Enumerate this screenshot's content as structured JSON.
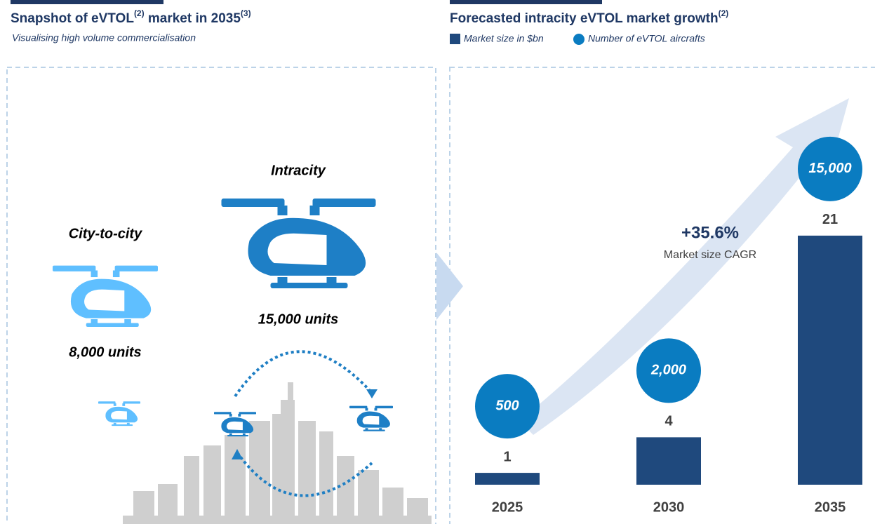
{
  "left": {
    "title": [
      "Snapshot of eVTOL",
      "(2)",
      " market in 2035",
      "(3)"
    ],
    "subtitle": "Visualising high volume commercialisation",
    "intracity": "Intracity",
    "intracity_units": "15,000 units",
    "city_to_city": "City-to-city",
    "city_units": "8,000 units"
  },
  "chart_data": {
    "type": "bar",
    "title": [
      "Forecasted intracity eVTOL market growth",
      "(2)"
    ],
    "categories": [
      "2025",
      "2030",
      "2035"
    ],
    "series": [
      {
        "name": "Market size in $bn",
        "color": "#1f497d",
        "values": [
          1,
          4,
          21
        ]
      },
      {
        "name": "Number of eVTOL aircrafts",
        "color": "#0a7cc1",
        "values": [
          500,
          2000,
          15000
        ],
        "value_labels": [
          "500",
          "2,000",
          "15,000"
        ]
      }
    ],
    "ylim": [
      0,
      22
    ],
    "annotations": [
      "+35.6%",
      "Market size CAGR"
    ]
  }
}
